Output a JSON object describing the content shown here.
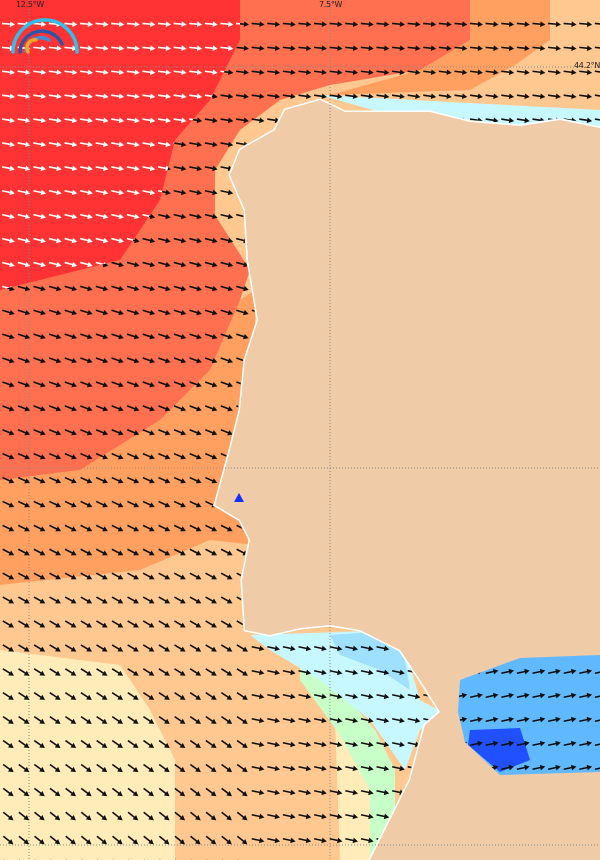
{
  "map": {
    "grid_labels": {
      "lon_left": "12.5°W",
      "lon_mid": "7.5°W",
      "lat_top": "44.2°N"
    },
    "colors": {
      "land": "#efcba8",
      "level_1": "#ff3333",
      "level_2": "#ff7050",
      "level_3": "#ffa060",
      "level_4": "#ffc890",
      "level_5": "#ffecb8",
      "level_6": "#c8ffc8",
      "level_7": "#c8f8ff",
      "level_8": "#a0e0ff",
      "level_9": "#60b8ff",
      "level_10": "#2050ff",
      "arrow_dark": "#111111",
      "arrow_light": "#ffffff",
      "grid": "#888888"
    },
    "logo": "rainbow-arc-logo",
    "arrow_icon": "direction-arrow-icon"
  }
}
